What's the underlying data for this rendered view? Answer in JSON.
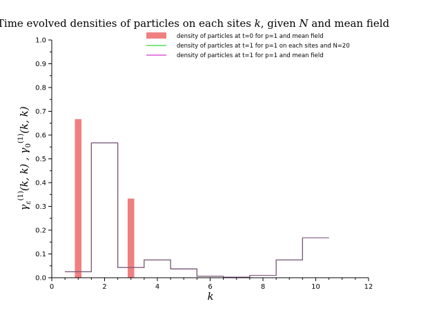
{
  "chart_data": {
    "type": "bar",
    "title": "Time evolved densities of particles on each sites k, given N and mean field",
    "xlabel": "k",
    "ylabel": "γε(1)(k,k) , γ0(1)(k,k)",
    "xlim": [
      0,
      12
    ],
    "ylim": [
      0,
      1.0
    ],
    "xticks": [
      "0",
      "2",
      "4",
      "6",
      "8",
      "10",
      "12"
    ],
    "yticks": [
      "0.0",
      "0.1",
      "0.2",
      "0.3",
      "0.4",
      "0.5",
      "0.6",
      "0.7",
      "0.8",
      "0.9",
      "1.0"
    ],
    "grid": false,
    "legend_position": "top-right",
    "series": [
      {
        "name": "density of particles at t=0 for p=1 and mean field",
        "kind": "bar",
        "color": "#f08080",
        "x": [
          1,
          3
        ],
        "values": [
          0.667,
          0.333
        ]
      },
      {
        "name": "density of particles at t=1 for p=1 on each sites and N=20",
        "kind": "step",
        "color": "#00cc00",
        "x": [
          1,
          2,
          3,
          4,
          5,
          6,
          7,
          8,
          9,
          10
        ],
        "values": [
          0.025,
          0.567,
          0.043,
          0.075,
          0.037,
          0.006,
          0.002,
          0.01,
          0.075,
          0.168
        ]
      },
      {
        "name": "density of particles at t=1 for p=1 and mean field",
        "kind": "step",
        "color": "#cc00cc",
        "x": [
          1,
          2,
          3,
          4,
          5,
          6,
          7,
          8,
          9,
          10
        ],
        "values": [
          0.025,
          0.567,
          0.043,
          0.075,
          0.037,
          0.006,
          0.002,
          0.01,
          0.075,
          0.168
        ]
      }
    ]
  }
}
